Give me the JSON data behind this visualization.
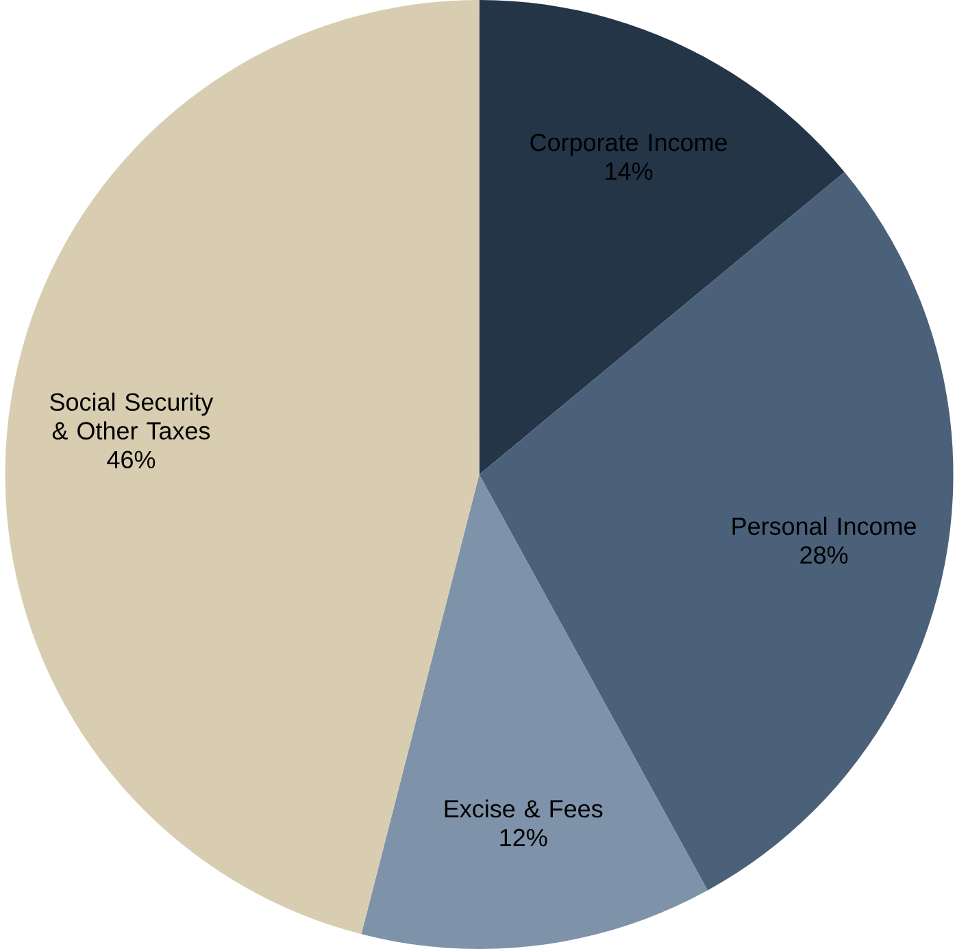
{
  "chart_data": {
    "type": "pie",
    "categories": [
      "Corporate Income",
      "Personal Income",
      "Excise & Fees",
      "Social Security & Other Taxes"
    ],
    "values": [
      14,
      28,
      12,
      46
    ],
    "value_labels": [
      "14%",
      "28%",
      "12%",
      "46%"
    ],
    "colors": [
      "#243548",
      "#4b6079",
      "#7e92a9",
      "#d8cdb1"
    ]
  }
}
